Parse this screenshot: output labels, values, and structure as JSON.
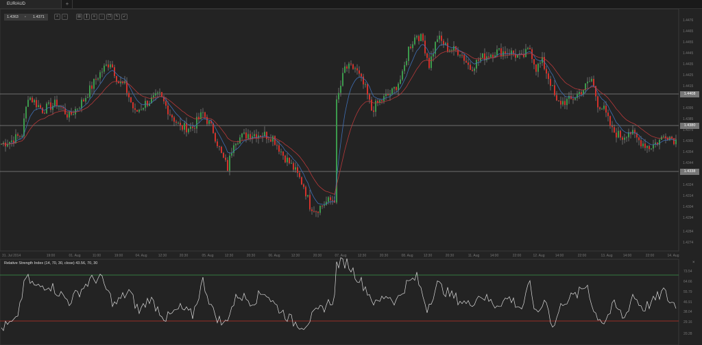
{
  "tab": {
    "title": "EUR/AUD",
    "add": "+"
  },
  "price_box": {
    "bid": "1.4363",
    "ask": "1.4371"
  },
  "toolbar": [
    "zoom-in",
    "zoom-out",
    "period",
    "chart-type",
    "indicators",
    "crosshair",
    "copy",
    "edit",
    "draw"
  ],
  "price_axis": [
    "1.4476",
    "1.4465",
    "1.4455",
    "1.4445",
    "1.4435",
    "1.4425",
    "1.4415",
    "1.4395",
    "1.4385",
    "1.4375",
    "1.4365",
    "1.4354",
    "1.4344",
    "1.4334",
    "1.4324",
    "1.4314",
    "1.4304",
    "1.4294",
    "1.4284",
    "1.4274"
  ],
  "levels": [
    "1.4408",
    "1.4380",
    "1.4338"
  ],
  "time_axis": [
    "31. Jul 2014",
    "19:00",
    "01. Aug",
    "11:00",
    "19:00",
    "04. Aug",
    "12:30",
    "20:30",
    "05. Aug",
    "12:30",
    "20:30",
    "06. Aug",
    "12:30",
    "20:30",
    "07. Aug",
    "12:30",
    "20:30",
    "08. Aug",
    "12:30",
    "20:30",
    "11. Aug",
    "14:00",
    "22:00",
    "12. Aug",
    "14:00",
    "22:00",
    "13. Aug",
    "14:00",
    "22:00",
    "14. Aug"
  ],
  "rsi": {
    "label": "Relative Strength Index (14, 70, 30, close) 43.56, 70, 30",
    "axis": [
      "73.54",
      "64.66",
      "55.79",
      "46.91",
      "38.04",
      "29.16",
      "20.28"
    ],
    "upper": 70,
    "lower": 30,
    "close": "×"
  },
  "colors": {
    "up": "#3c9a4c",
    "down": "#d3322b",
    "ma_fast": "#3f6fb5",
    "ma_slow": "#b8393a",
    "upper_line": "#3c9a4c",
    "lower_line": "#c0302a"
  },
  "chart_data": {
    "type": "candlestick",
    "symbol": "EUR/AUD",
    "ylim": [
      1.427,
      1.448
    ],
    "close_path": [
      [
        0,
        1.4363
      ],
      [
        5,
        1.4366
      ],
      [
        10,
        1.4372
      ],
      [
        13,
        1.4407
      ],
      [
        20,
        1.4394
      ],
      [
        27,
        1.44
      ],
      [
        33,
        1.4388
      ],
      [
        40,
        1.4403
      ],
      [
        47,
        1.4425
      ],
      [
        50,
        1.4432
      ],
      [
        53,
        1.4438
      ],
      [
        57,
        1.4419
      ],
      [
        60,
        1.4416
      ],
      [
        65,
        1.4391
      ],
      [
        70,
        1.44
      ],
      [
        77,
        1.4407
      ],
      [
        82,
        1.4391
      ],
      [
        87,
        1.4378
      ],
      [
        93,
        1.4378
      ],
      [
        98,
        1.4391
      ],
      [
        103,
        1.4375
      ],
      [
        107,
        1.4353
      ],
      [
        110,
        1.4341
      ],
      [
        113,
        1.4366
      ],
      [
        120,
        1.4372
      ],
      [
        127,
        1.4372
      ],
      [
        132,
        1.4369
      ],
      [
        137,
        1.4353
      ],
      [
        142,
        1.4341
      ],
      [
        147,
        1.4325
      ],
      [
        150,
        1.4307
      ],
      [
        153,
        1.4303
      ],
      [
        158,
        1.431
      ],
      [
        162,
        1.4313
      ],
      [
        163,
        1.44
      ],
      [
        167,
        1.4432
      ],
      [
        172,
        1.4432
      ],
      [
        177,
        1.4413
      ],
      [
        180,
        1.4394
      ],
      [
        183,
        1.44
      ],
      [
        190,
        1.441
      ],
      [
        195,
        1.4425
      ],
      [
        198,
        1.445
      ],
      [
        202,
        1.4463
      ],
      [
        205,
        1.4457
      ],
      [
        208,
        1.4435
      ],
      [
        212,
        1.446
      ],
      [
        217,
        1.445
      ],
      [
        223,
        1.4447
      ],
      [
        228,
        1.4432
      ],
      [
        233,
        1.4441
      ],
      [
        240,
        1.4447
      ],
      [
        247,
        1.4447
      ],
      [
        253,
        1.4441
      ],
      [
        257,
        1.445
      ],
      [
        260,
        1.4432
      ],
      [
        263,
        1.4438
      ],
      [
        267,
        1.4419
      ],
      [
        270,
        1.44
      ],
      [
        277,
        1.4403
      ],
      [
        283,
        1.4413
      ],
      [
        287,
        1.4422
      ],
      [
        290,
        1.44
      ],
      [
        293,
        1.4394
      ],
      [
        297,
        1.4375
      ],
      [
        302,
        1.4369
      ],
      [
        305,
        1.4375
      ],
      [
        310,
        1.4366
      ],
      [
        315,
        1.436
      ],
      [
        320,
        1.4366
      ],
      [
        323,
        1.4372
      ],
      [
        328,
        1.4366
      ]
    ],
    "rsi_path": [
      [
        0,
        24
      ],
      [
        7,
        29
      ],
      [
        12,
        68
      ],
      [
        17,
        59
      ],
      [
        23,
        62
      ],
      [
        33,
        47
      ],
      [
        43,
        65
      ],
      [
        48,
        68
      ],
      [
        55,
        44
      ],
      [
        62,
        56
      ],
      [
        67,
        38
      ],
      [
        72,
        50
      ],
      [
        80,
        32
      ],
      [
        87,
        41
      ],
      [
        93,
        35
      ],
      [
        98,
        65
      ],
      [
        103,
        38
      ],
      [
        108,
        26
      ],
      [
        115,
        53
      ],
      [
        122,
        47
      ],
      [
        128,
        56
      ],
      [
        133,
        44
      ],
      [
        142,
        29
      ],
      [
        147,
        26
      ],
      [
        152,
        35
      ],
      [
        158,
        44
      ],
      [
        162,
        50
      ],
      [
        163,
        80
      ],
      [
        168,
        81
      ],
      [
        172,
        71
      ],
      [
        177,
        59
      ],
      [
        182,
        44
      ],
      [
        187,
        53
      ],
      [
        192,
        47
      ],
      [
        197,
        62
      ],
      [
        202,
        68
      ],
      [
        207,
        41
      ],
      [
        212,
        62
      ],
      [
        218,
        53
      ],
      [
        227,
        44
      ],
      [
        233,
        53
      ],
      [
        240,
        44
      ],
      [
        247,
        50
      ],
      [
        253,
        41
      ],
      [
        257,
        62
      ],
      [
        260,
        35
      ],
      [
        265,
        50
      ],
      [
        268,
        23
      ],
      [
        273,
        47
      ],
      [
        280,
        53
      ],
      [
        285,
        62
      ],
      [
        288,
        38
      ],
      [
        293,
        29
      ],
      [
        298,
        44
      ],
      [
        303,
        32
      ],
      [
        307,
        53
      ],
      [
        312,
        41
      ],
      [
        317,
        47
      ],
      [
        322,
        56
      ],
      [
        325,
        47
      ],
      [
        328,
        44
      ]
    ]
  }
}
